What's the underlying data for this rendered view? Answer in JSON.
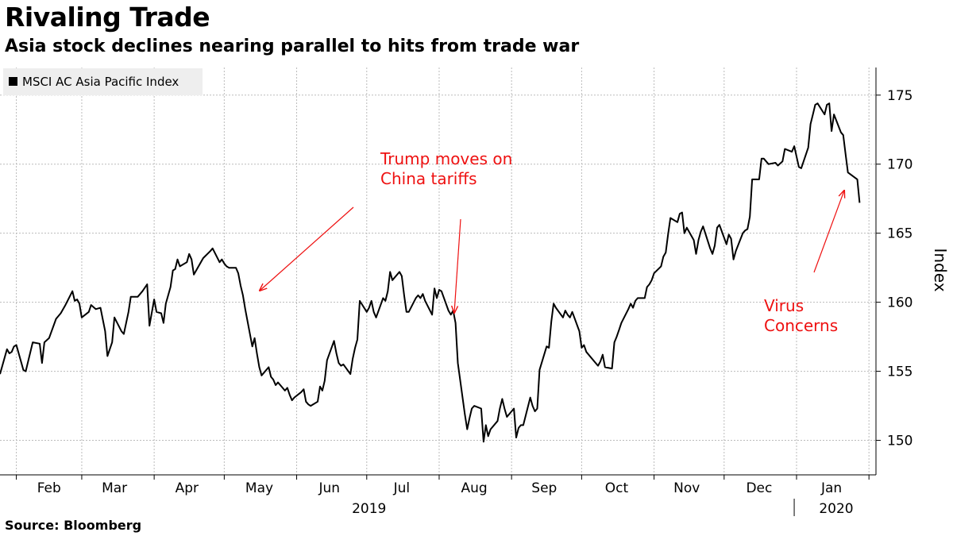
{
  "title": "Rivaling Trade",
  "subtitle": "Asia stock declines nearing parallel to hits from trade war",
  "source": "Source: Bloomberg",
  "colors": {
    "line": "#000000",
    "annotation": "#ee1111",
    "grid": "#bbbbbb",
    "legend_bg": "#eeeeee"
  },
  "chart_data": {
    "type": "line",
    "ylabel": "Index",
    "ylim": [
      147.5,
      177
    ],
    "yticks": [
      150,
      155,
      160,
      165,
      170,
      175
    ],
    "xlim": [
      "2019-01-25",
      "2020-02-04"
    ],
    "month_ticks": [
      "2019-02-01",
      "2019-03-01",
      "2019-04-01",
      "2019-05-01",
      "2019-06-01",
      "2019-07-01",
      "2019-08-01",
      "2019-09-01",
      "2019-10-01",
      "2019-11-01",
      "2019-12-01",
      "2020-01-01",
      "2020-02-01"
    ],
    "month_labels": [
      {
        "label": "Feb",
        "date": "2019-02-15"
      },
      {
        "label": "Mar",
        "date": "2019-03-15"
      },
      {
        "label": "Apr",
        "date": "2019-04-15"
      },
      {
        "label": "May",
        "date": "2019-05-16"
      },
      {
        "label": "Jun",
        "date": "2019-06-15"
      },
      {
        "label": "Jul",
        "date": "2019-07-16"
      },
      {
        "label": "Aug",
        "date": "2019-08-16"
      },
      {
        "label": "Sep",
        "date": "2019-09-15"
      },
      {
        "label": "Oct",
        "date": "2019-10-16"
      },
      {
        "label": "Nov",
        "date": "2019-11-15"
      },
      {
        "label": "Dec",
        "date": "2019-12-16"
      },
      {
        "label": "Jan",
        "date": "2020-01-16"
      }
    ],
    "year_labels": [
      {
        "label": "2019",
        "date": "2019-07-02"
      },
      {
        "label": "2020",
        "date": "2020-01-18"
      }
    ],
    "year_divider_date": "2019-12-31",
    "legend": "MSCI AC Asia Pacific Index",
    "grid": true,
    "series": [
      {
        "name": "MSCI AC Asia Pacific Index",
        "points": [
          [
            "2019-01-25",
            154.8
          ],
          [
            "2019-01-28",
            156.6
          ],
          [
            "2019-01-29",
            156.3
          ],
          [
            "2019-01-30",
            156.4
          ],
          [
            "2019-01-31",
            156.8
          ],
          [
            "2019-02-01",
            156.9
          ],
          [
            "2019-02-04",
            155.1
          ],
          [
            "2019-02-05",
            155.0
          ],
          [
            "2019-02-08",
            157.1
          ],
          [
            "2019-02-11",
            157.0
          ],
          [
            "2019-02-12",
            155.6
          ],
          [
            "2019-02-13",
            157.1
          ],
          [
            "2019-02-15",
            157.4
          ],
          [
            "2019-02-18",
            158.8
          ],
          [
            "2019-02-20",
            159.2
          ],
          [
            "2019-02-22",
            159.8
          ],
          [
            "2019-02-25",
            160.8
          ],
          [
            "2019-02-26",
            160.1
          ],
          [
            "2019-02-27",
            160.2
          ],
          [
            "2019-02-28",
            159.9
          ],
          [
            "2019-03-01",
            158.9
          ],
          [
            "2019-03-04",
            159.3
          ],
          [
            "2019-03-05",
            159.8
          ],
          [
            "2019-03-07",
            159.5
          ],
          [
            "2019-03-09",
            159.6
          ],
          [
            "2019-03-11",
            157.9
          ],
          [
            "2019-03-12",
            156.1
          ],
          [
            "2019-03-14",
            157.1
          ],
          [
            "2019-03-15",
            158.9
          ],
          [
            "2019-03-18",
            157.9
          ],
          [
            "2019-03-19",
            157.7
          ],
          [
            "2019-03-21",
            159.3
          ],
          [
            "2019-03-22",
            160.4
          ],
          [
            "2019-03-25",
            160.4
          ],
          [
            "2019-03-27",
            160.8
          ],
          [
            "2019-03-29",
            161.3
          ],
          [
            "2019-03-30",
            158.3
          ],
          [
            "2019-04-01",
            160.2
          ],
          [
            "2019-04-02",
            159.3
          ],
          [
            "2019-04-04",
            159.2
          ],
          [
            "2019-04-05",
            158.5
          ],
          [
            "2019-04-06",
            159.9
          ],
          [
            "2019-04-08",
            161.1
          ],
          [
            "2019-04-09",
            162.3
          ],
          [
            "2019-04-10",
            162.4
          ],
          [
            "2019-04-11",
            163.1
          ],
          [
            "2019-04-12",
            162.6
          ],
          [
            "2019-04-15",
            162.9
          ],
          [
            "2019-04-16",
            163.5
          ],
          [
            "2019-04-17",
            163.1
          ],
          [
            "2019-04-18",
            162.0
          ],
          [
            "2019-04-22",
            163.2
          ],
          [
            "2019-04-25",
            163.7
          ],
          [
            "2019-04-26",
            163.9
          ],
          [
            "2019-04-29",
            162.9
          ],
          [
            "2019-04-30",
            163.1
          ],
          [
            "2019-05-01",
            162.8
          ],
          [
            "2019-05-02",
            162.6
          ],
          [
            "2019-05-03",
            162.5
          ],
          [
            "2019-05-06",
            162.5
          ],
          [
            "2019-05-07",
            162.1
          ],
          [
            "2019-05-08",
            161.2
          ],
          [
            "2019-05-09",
            160.5
          ],
          [
            "2019-05-10",
            159.5
          ],
          [
            "2019-05-13",
            156.8
          ],
          [
            "2019-05-14",
            157.4
          ],
          [
            "2019-05-15",
            156.3
          ],
          [
            "2019-05-16",
            155.3
          ],
          [
            "2019-05-17",
            154.7
          ],
          [
            "2019-05-20",
            155.3
          ],
          [
            "2019-05-21",
            154.6
          ],
          [
            "2019-05-22",
            154.4
          ],
          [
            "2019-05-23",
            154.0
          ],
          [
            "2019-05-24",
            154.2
          ],
          [
            "2019-05-27",
            153.6
          ],
          [
            "2019-05-28",
            153.8
          ],
          [
            "2019-05-29",
            153.3
          ],
          [
            "2019-05-30",
            152.9
          ],
          [
            "2019-05-31",
            153.1
          ],
          [
            "2019-06-03",
            153.5
          ],
          [
            "2019-06-04",
            153.7
          ],
          [
            "2019-06-05",
            152.8
          ],
          [
            "2019-06-06",
            152.6
          ],
          [
            "2019-06-07",
            152.5
          ],
          [
            "2019-06-10",
            152.8
          ],
          [
            "2019-06-11",
            153.9
          ],
          [
            "2019-06-12",
            153.6
          ],
          [
            "2019-06-13",
            154.3
          ],
          [
            "2019-06-14",
            155.8
          ],
          [
            "2019-06-17",
            157.2
          ],
          [
            "2019-06-18",
            156.3
          ],
          [
            "2019-06-19",
            155.6
          ],
          [
            "2019-06-20",
            155.4
          ],
          [
            "2019-06-21",
            155.5
          ],
          [
            "2019-06-24",
            154.8
          ],
          [
            "2019-06-25",
            155.9
          ],
          [
            "2019-06-26",
            156.7
          ],
          [
            "2019-06-27",
            157.3
          ],
          [
            "2019-06-28",
            160.1
          ],
          [
            "2019-07-01",
            159.3
          ],
          [
            "2019-07-02",
            159.6
          ],
          [
            "2019-07-03",
            160.1
          ],
          [
            "2019-07-04",
            159.3
          ],
          [
            "2019-07-05",
            158.9
          ],
          [
            "2019-07-08",
            160.3
          ],
          [
            "2019-07-09",
            160.1
          ],
          [
            "2019-07-10",
            160.8
          ],
          [
            "2019-07-11",
            162.2
          ],
          [
            "2019-07-12",
            161.6
          ],
          [
            "2019-07-15",
            162.2
          ],
          [
            "2019-07-16",
            161.9
          ],
          [
            "2019-07-17",
            160.5
          ],
          [
            "2019-07-18",
            159.3
          ],
          [
            "2019-07-19",
            159.3
          ],
          [
            "2019-07-22",
            160.3
          ],
          [
            "2019-07-23",
            160.5
          ],
          [
            "2019-07-24",
            160.3
          ],
          [
            "2019-07-25",
            160.6
          ],
          [
            "2019-07-26",
            160.1
          ],
          [
            "2019-07-29",
            159.1
          ],
          [
            "2019-07-30",
            161.0
          ],
          [
            "2019-07-31",
            160.3
          ],
          [
            "2019-08-01",
            160.9
          ],
          [
            "2019-08-02",
            160.8
          ],
          [
            "2019-08-05",
            159.4
          ],
          [
            "2019-08-06",
            159.1
          ],
          [
            "2019-08-07",
            159.4
          ],
          [
            "2019-08-08",
            158.5
          ],
          [
            "2019-08-09",
            155.6
          ],
          [
            "2019-08-12",
            151.9
          ],
          [
            "2019-08-13",
            150.8
          ],
          [
            "2019-08-14",
            151.6
          ],
          [
            "2019-08-15",
            152.3
          ],
          [
            "2019-08-16",
            152.5
          ],
          [
            "2019-08-19",
            152.3
          ],
          [
            "2019-08-20",
            149.9
          ],
          [
            "2019-08-21",
            151.1
          ],
          [
            "2019-08-22",
            150.3
          ],
          [
            "2019-08-23",
            150.8
          ],
          [
            "2019-08-26",
            151.4
          ],
          [
            "2019-08-27",
            152.3
          ],
          [
            "2019-08-28",
            153.0
          ],
          [
            "2019-08-29",
            152.3
          ],
          [
            "2019-08-30",
            151.7
          ],
          [
            "2019-09-02",
            152.3
          ],
          [
            "2019-09-03",
            150.2
          ],
          [
            "2019-09-04",
            150.9
          ],
          [
            "2019-09-05",
            151.1
          ],
          [
            "2019-09-06",
            151.1
          ],
          [
            "2019-09-09",
            153.1
          ],
          [
            "2019-09-10",
            152.5
          ],
          [
            "2019-09-11",
            152.1
          ],
          [
            "2019-09-12",
            152.3
          ],
          [
            "2019-09-13",
            155.1
          ],
          [
            "2019-09-16",
            156.8
          ],
          [
            "2019-09-17",
            156.7
          ],
          [
            "2019-09-18",
            158.6
          ],
          [
            "2019-09-19",
            159.9
          ],
          [
            "2019-09-20",
            159.6
          ],
          [
            "2019-09-23",
            158.9
          ],
          [
            "2019-09-24",
            159.4
          ],
          [
            "2019-09-25",
            159.1
          ],
          [
            "2019-09-26",
            158.9
          ],
          [
            "2019-09-27",
            159.3
          ],
          [
            "2019-09-30",
            157.9
          ],
          [
            "2019-10-01",
            156.7
          ],
          [
            "2019-10-02",
            156.9
          ],
          [
            "2019-10-03",
            156.4
          ],
          [
            "2019-10-07",
            155.6
          ],
          [
            "2019-10-08",
            155.4
          ],
          [
            "2019-10-09",
            155.7
          ],
          [
            "2019-10-10",
            156.2
          ],
          [
            "2019-10-11",
            155.3
          ],
          [
            "2019-10-14",
            155.2
          ],
          [
            "2019-10-15",
            157.1
          ],
          [
            "2019-10-16",
            157.5
          ],
          [
            "2019-10-17",
            158.0
          ],
          [
            "2019-10-18",
            158.5
          ],
          [
            "2019-10-21",
            159.5
          ],
          [
            "2019-10-22",
            159.9
          ],
          [
            "2019-10-23",
            159.6
          ],
          [
            "2019-10-24",
            160.1
          ],
          [
            "2019-10-25",
            160.3
          ],
          [
            "2019-10-28",
            160.3
          ],
          [
            "2019-10-29",
            161.1
          ],
          [
            "2019-10-30",
            161.3
          ],
          [
            "2019-10-31",
            161.6
          ],
          [
            "2019-11-01",
            162.1
          ],
          [
            "2019-11-04",
            162.6
          ],
          [
            "2019-11-05",
            163.3
          ],
          [
            "2019-11-06",
            163.6
          ],
          [
            "2019-11-07",
            164.9
          ],
          [
            "2019-11-08",
            166.1
          ],
          [
            "2019-11-11",
            165.8
          ],
          [
            "2019-11-12",
            166.4
          ],
          [
            "2019-11-13",
            166.5
          ],
          [
            "2019-11-14",
            165.0
          ],
          [
            "2019-11-15",
            165.4
          ],
          [
            "2019-11-18",
            164.5
          ],
          [
            "2019-11-19",
            163.5
          ],
          [
            "2019-11-20",
            164.5
          ],
          [
            "2019-11-21",
            165.1
          ],
          [
            "2019-11-22",
            165.5
          ],
          [
            "2019-11-25",
            163.9
          ],
          [
            "2019-11-26",
            163.5
          ],
          [
            "2019-11-27",
            164.1
          ],
          [
            "2019-11-28",
            165.4
          ],
          [
            "2019-11-29",
            165.6
          ],
          [
            "2019-12-02",
            164.2
          ],
          [
            "2019-12-03",
            164.9
          ],
          [
            "2019-12-04",
            164.6
          ],
          [
            "2019-12-05",
            163.1
          ],
          [
            "2019-12-06",
            163.7
          ],
          [
            "2019-12-09",
            165.0
          ],
          [
            "2019-12-10",
            165.2
          ],
          [
            "2019-12-11",
            165.3
          ],
          [
            "2019-12-12",
            166.2
          ],
          [
            "2019-12-13",
            168.9
          ],
          [
            "2019-12-16",
            168.9
          ],
          [
            "2019-12-17",
            170.4
          ],
          [
            "2019-12-18",
            170.4
          ],
          [
            "2019-12-19",
            170.2
          ],
          [
            "2019-12-20",
            170.0
          ],
          [
            "2019-12-23",
            170.1
          ],
          [
            "2019-12-24",
            169.9
          ],
          [
            "2019-12-26",
            170.2
          ],
          [
            "2019-12-27",
            171.1
          ],
          [
            "2019-12-30",
            170.9
          ],
          [
            "2019-12-31",
            171.3
          ],
          [
            "2020-01-02",
            169.8
          ],
          [
            "2020-01-03",
            169.7
          ],
          [
            "2020-01-06",
            171.2
          ],
          [
            "2020-01-07",
            172.9
          ],
          [
            "2020-01-08",
            173.6
          ],
          [
            "2020-01-09",
            174.3
          ],
          [
            "2020-01-10",
            174.4
          ],
          [
            "2020-01-13",
            173.6
          ],
          [
            "2020-01-14",
            174.3
          ],
          [
            "2020-01-15",
            174.4
          ],
          [
            "2020-01-16",
            172.4
          ],
          [
            "2020-01-17",
            173.6
          ],
          [
            "2020-01-20",
            172.3
          ],
          [
            "2020-01-21",
            172.1
          ],
          [
            "2020-01-22",
            170.7
          ],
          [
            "2020-01-23",
            169.4
          ],
          [
            "2020-01-27",
            168.9
          ],
          [
            "2020-01-28",
            167.2
          ]
        ]
      }
    ],
    "annotations": [
      {
        "text_lines": [
          "Trump moves on",
          "China tariffs"
        ]
      },
      {
        "text_lines": [
          "Virus",
          "Concerns"
        ]
      }
    ]
  }
}
